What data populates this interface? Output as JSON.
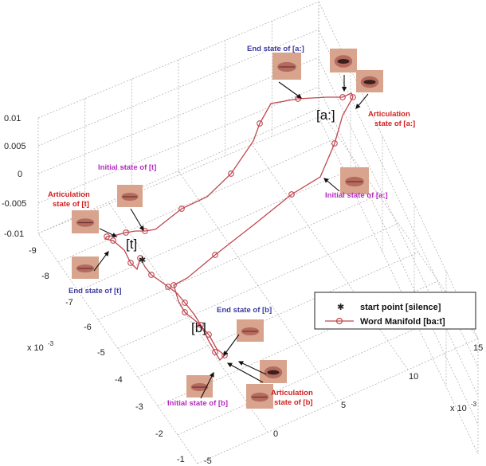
{
  "chart_data": {
    "type": "line",
    "title": "",
    "xlabel": "",
    "ylabel": "",
    "exponent_labels": {
      "left": "x 10",
      "bottom": "x 10",
      "power": "-3"
    },
    "axis_ticks": {
      "z": [
        "0.01",
        "0.005",
        "0",
        "-0.005",
        "-0.01"
      ],
      "left": [
        "-9",
        "-8",
        "-7",
        "-6",
        "-5",
        "-4",
        "-3",
        "-2",
        "-1"
      ],
      "bottom": [
        "-5",
        "0",
        "5",
        "10",
        "15"
      ]
    },
    "legend": {
      "entries": [
        {
          "label": "start point [silence]",
          "marker": "star"
        },
        {
          "label": "Word Manifold [ba:t]",
          "marker": "circle-line"
        }
      ]
    },
    "phoneme_labels": [
      "[a:]",
      "[t]",
      "[b]"
    ],
    "annotations": [
      {
        "text": "End state of [a:]",
        "color": "#3a3aa0"
      },
      {
        "text": "Articulation\nstate of [a:]",
        "color": "#d21f1f"
      },
      {
        "text": "Initial state of [a:]",
        "color": "#b52bbf"
      },
      {
        "text": "Initial state of [t]",
        "color": "#b52bbf"
      },
      {
        "text": "Articulation\nstate of [t]",
        "color": "#d21f1f"
      },
      {
        "text": "End state of [t]",
        "color": "#3a3aa0"
      },
      {
        "text": "End state of [b]",
        "color": "#3a3aa0"
      },
      {
        "text": "Initial state of [b]",
        "color": "#b52bbf"
      },
      {
        "text": "Articulation\nstate of [b]",
        "color": "#d21f1f"
      }
    ],
    "series": [
      {
        "name": "Word Manifold [ba:t]",
        "color": "#c0474f",
        "marker": "circle"
      }
    ],
    "grid": true,
    "colors": {
      "trajectory": "#c0474f",
      "grid": "#b4b4b4"
    }
  }
}
